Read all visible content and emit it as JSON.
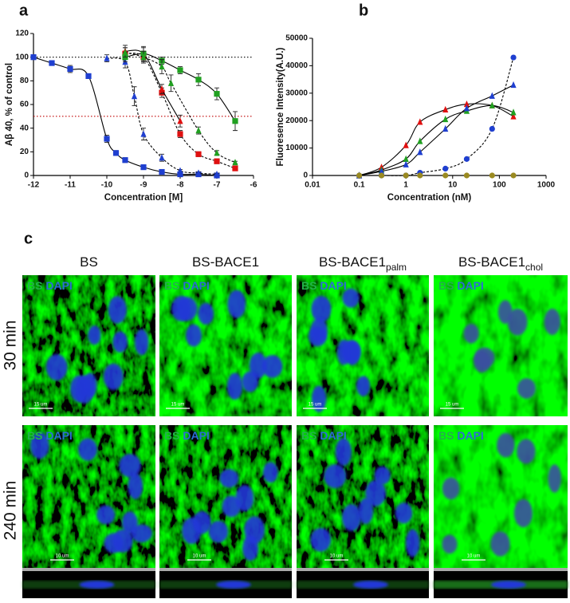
{
  "chart_data": [
    {
      "type": "scatter",
      "panel_label": "a",
      "xlabel": "Concentration [M]",
      "ylabel": "Aβ 40, % of control",
      "xlim": [
        -12,
        -6
      ],
      "xticks": [
        -12,
        -11,
        -10,
        -9,
        -8,
        -7,
        -6
      ],
      "ylim": [
        0,
        120
      ],
      "yticks": [
        0,
        20,
        40,
        60,
        80,
        100,
        120
      ],
      "reference_lines": [
        {
          "value": 100,
          "color": "#000000"
        },
        {
          "value": 50,
          "color": "#c00000"
        }
      ],
      "series": [
        {
          "color": "#1f3fd0",
          "marker": "square",
          "line": "solid",
          "x": [
            -12,
            -11.5,
            -11,
            -10.5,
            -10,
            -9.75,
            -9.5,
            -9,
            -8.5,
            -8,
            -7.5,
            -7
          ],
          "values": [
            100,
            95,
            90,
            84,
            31,
            19,
            13,
            7,
            3,
            1,
            1,
            0
          ],
          "errors": [
            2,
            2,
            3,
            2,
            3,
            2,
            2,
            1,
            1,
            1,
            1,
            1
          ]
        },
        {
          "color": "#1f3fd0",
          "marker": "triangle",
          "line": "dashed",
          "x": [
            -10,
            -9.5,
            -9.25,
            -9,
            -8.5,
            -8,
            -7.5,
            -7
          ],
          "values": [
            99,
            96,
            67,
            35,
            15,
            4,
            2,
            1
          ],
          "errors": [
            3,
            5,
            8,
            5,
            3,
            1,
            1,
            1
          ]
        },
        {
          "color": "#e01010",
          "marker": "square",
          "line": "dashed",
          "x": [
            -9.5,
            -9,
            -8.5,
            -8,
            -7.5,
            -7,
            -6.5
          ],
          "values": [
            103,
            100,
            70,
            35,
            18,
            12,
            6
          ],
          "errors": [
            5,
            4,
            4,
            3,
            2,
            2,
            1
          ]
        },
        {
          "color": "#e01010",
          "marker": "triangle",
          "line": "solid",
          "x": [
            -9.5,
            -9,
            -8.5,
            -8
          ],
          "values": [
            105,
            103,
            73,
            46
          ],
          "errors": [
            5,
            6,
            4,
            5
          ]
        },
        {
          "color": "#20a020",
          "marker": "square",
          "line": "solid",
          "x": [
            -9.5,
            -9,
            -8.5,
            -8,
            -7.5,
            -7,
            -6.5
          ],
          "values": [
            100,
            103,
            97,
            89,
            81,
            69,
            46
          ],
          "errors": [
            4,
            5,
            3,
            3,
            5,
            5,
            8
          ]
        },
        {
          "color": "#20a020",
          "marker": "triangle",
          "line": "dashed",
          "x": [
            -9.5,
            -9,
            -8.5,
            -8.25,
            -7.5,
            -7,
            -6.5
          ],
          "values": [
            104,
            100,
            92,
            78,
            38,
            19,
            11
          ],
          "errors": [
            4,
            5,
            6,
            7,
            3,
            2,
            1
          ]
        }
      ]
    },
    {
      "type": "line",
      "panel_label": "b",
      "xlabel": "Concentration (nM)",
      "ylabel": "Fluoresence Intensity(A.U.)",
      "log_x": true,
      "xlim": [
        0.01,
        1000
      ],
      "xticks": [
        0.01,
        0.1,
        1,
        10,
        100,
        1000
      ],
      "ylim": [
        0,
        50000
      ],
      "yticks": [
        0,
        10000,
        20000,
        30000,
        40000,
        50000
      ],
      "x": [
        0.1,
        0.3,
        1,
        2,
        7,
        20,
        70,
        200
      ],
      "series": [
        {
          "color": "#e01010",
          "marker": "triangle",
          "line": "solid",
          "values": [
            0,
            3000,
            11000,
            19500,
            24000,
            26000,
            25500,
            21500
          ]
        },
        {
          "color": "#20a020",
          "marker": "triangle",
          "line": "solid",
          "values": [
            0,
            2000,
            6000,
            12500,
            20500,
            23500,
            25500,
            23000
          ]
        },
        {
          "color": "#1f3fd0",
          "marker": "triangle",
          "line": "solid",
          "values": [
            0,
            1500,
            4000,
            8500,
            17000,
            24500,
            29000,
            33000
          ]
        },
        {
          "color": "#1f3fd0",
          "marker": "circle",
          "line": "dashed",
          "values": [
            0,
            0,
            0,
            1000,
            2500,
            6000,
            17000,
            43000
          ]
        },
        {
          "color": "#9a8a20",
          "marker": "circle",
          "line": "none",
          "values": [
            0,
            0,
            0,
            0,
            0,
            0,
            0,
            0
          ]
        }
      ]
    }
  ],
  "panel_c": {
    "label": "c",
    "columns": [
      {
        "name": "BS"
      },
      {
        "name": "BS-BACE1"
      },
      {
        "name": "BS-BACE1",
        "subscript": "palm"
      },
      {
        "name": "BS-BACE1",
        "subscript": "chol"
      }
    ],
    "rows": [
      {
        "label": "30 min",
        "scale_bar": "15 um"
      },
      {
        "label": "240 min",
        "scale_bar": "10 um"
      }
    ],
    "stain": [
      "BS",
      "DAPI"
    ]
  }
}
